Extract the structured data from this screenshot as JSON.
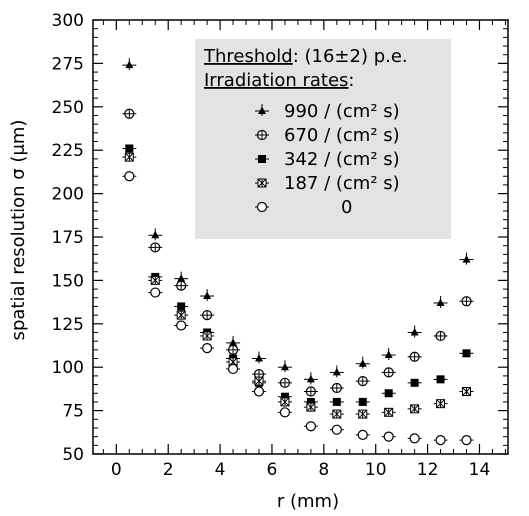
{
  "chart_data": {
    "type": "scatter",
    "xlabel": "r (mm)",
    "ylabel": "spatial resolution σ (μm)",
    "xlim": [
      -0.9,
      15.1
    ],
    "ylim": [
      50,
      300
    ],
    "xticks": [
      "0",
      "2",
      "4",
      "6",
      "8",
      "10",
      "12",
      "14"
    ],
    "yticks": [
      "50",
      "75",
      "100",
      "125",
      "150",
      "175",
      "200",
      "225",
      "250",
      "275",
      "300"
    ],
    "grid": false,
    "legend": {
      "placement": "top-center",
      "threshold_label": "Threshold",
      "threshold_value": ": (16±2) p.e.",
      "rates_label": "Irradiation rates",
      "rates_colon": ":",
      "background": "#e3e3e3"
    },
    "series": [
      {
        "name": "990 / (cm² s)",
        "marker": "triangle",
        "x": [
          0.5,
          1.5,
          2.5,
          3.5,
          4.5,
          5.5,
          6.5,
          7.5,
          8.5,
          9.5,
          10.5,
          11.5,
          12.5,
          13.5
        ],
        "y": [
          274,
          176,
          151,
          141,
          114,
          105,
          100,
          93,
          97,
          102,
          107,
          120,
          137,
          162
        ]
      },
      {
        "name": "670 / (cm² s)",
        "marker": "crossed-circle",
        "x": [
          0.5,
          1.5,
          2.5,
          3.5,
          4.5,
          5.5,
          6.5,
          7.5,
          8.5,
          9.5,
          10.5,
          11.5,
          12.5,
          13.5
        ],
        "y": [
          246,
          169,
          147,
          130,
          110,
          96,
          91,
          86,
          88,
          92,
          97,
          106,
          118,
          138
        ]
      },
      {
        "name": "342 / (cm² s)",
        "marker": "filled-square",
        "x": [
          0.5,
          1.5,
          2.5,
          3.5,
          4.5,
          5.5,
          6.5,
          7.5,
          8.5,
          9.5,
          10.5,
          11.5,
          12.5,
          13.5
        ],
        "y": [
          226,
          152,
          135,
          120,
          105,
          91,
          83,
          80,
          80,
          80,
          85,
          91,
          93,
          108
        ]
      },
      {
        "name": "187 / (cm² s)",
        "marker": "hatched-square",
        "x": [
          0.5,
          1.5,
          2.5,
          3.5,
          4.5,
          5.5,
          6.5,
          7.5,
          8.5,
          9.5,
          10.5,
          11.5,
          12.5,
          13.5
        ],
        "y": [
          221,
          150,
          130,
          118,
          103,
          92,
          80,
          77,
          73,
          73,
          74,
          76,
          79,
          86
        ]
      },
      {
        "name": "0",
        "marker": "open-circle",
        "x": [
          0.5,
          1.5,
          2.5,
          3.5,
          4.5,
          5.5,
          6.5,
          7.5,
          8.5,
          9.5,
          10.5,
          11.5,
          12.5,
          13.5
        ],
        "y": [
          210,
          143,
          124,
          111,
          99,
          86,
          74,
          66,
          64,
          61,
          60,
          59,
          58,
          58
        ]
      }
    ]
  }
}
